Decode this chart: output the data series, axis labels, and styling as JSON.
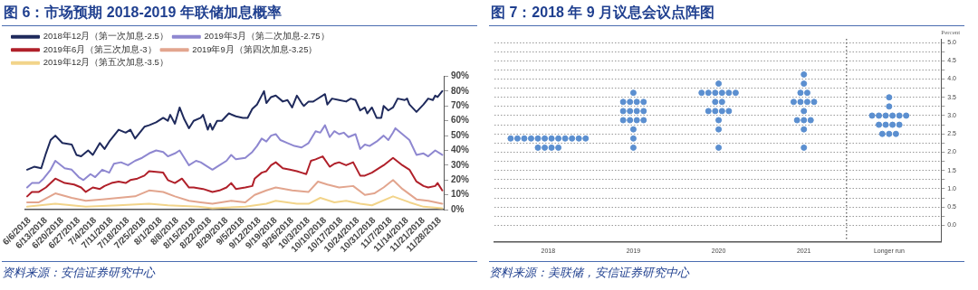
{
  "chart_data": [
    {
      "type": "line",
      "title": "图 6：市场预期 2018-2019 年联储加息概率",
      "annotations": [
        "资料来源：安信证券研究中心"
      ],
      "legend": "top",
      "marker": "none",
      "line_style": "solid",
      "grid": false,
      "xlim": [
        "2018-06-04",
        "2018-11-30"
      ],
      "xticks": [
        {
          "value": "2018-06-06",
          "label": "6/6/2018"
        },
        {
          "value": "2018-06-13",
          "label": "6/13/2018"
        },
        {
          "value": "2018-06-20",
          "label": "6/20/2018"
        },
        {
          "value": "2018-06-27",
          "label": "6/27/2018"
        },
        {
          "value": "2018-07-04",
          "label": "7/4/2018"
        },
        {
          "value": "2018-07-11",
          "label": "7/11/2018"
        },
        {
          "value": "2018-07-18",
          "label": "7/18/2018"
        },
        {
          "value": "2018-07-25",
          "label": "7/25/2018"
        },
        {
          "value": "2018-08-01",
          "label": "8/1/2018"
        },
        {
          "value": "2018-08-08",
          "label": "8/8/2018"
        },
        {
          "value": "2018-08-15",
          "label": "8/15/2018"
        },
        {
          "value": "2018-08-22",
          "label": "8/22/2018"
        },
        {
          "value": "2018-08-29",
          "label": "8/29/2018"
        },
        {
          "value": "2018-09-05",
          "label": "9/5/2018"
        },
        {
          "value": "2018-09-12",
          "label": "9/12/2018"
        },
        {
          "value": "2018-09-19",
          "label": "9/19/2018"
        },
        {
          "value": "2018-09-26",
          "label": "9/26/2018"
        },
        {
          "value": "2018-10-03",
          "label": "10/3/2018"
        },
        {
          "value": "2018-10-10",
          "label": "10/10/2018"
        },
        {
          "value": "2018-10-17",
          "label": "10/17/2018"
        },
        {
          "value": "2018-10-24",
          "label": "10/24/2018"
        },
        {
          "value": "2018-10-31",
          "label": "10/31/2018"
        },
        {
          "value": "2018-11-07",
          "label": "11/7/2018"
        },
        {
          "value": "2018-11-14",
          "label": "11/14/2018"
        },
        {
          "value": "2018-11-21",
          "label": "11/21/2018"
        },
        {
          "value": "2018-11-28",
          "label": "11/28/2018"
        }
      ],
      "ylim": [
        0,
        90
      ],
      "yticks": [
        {
          "value": 0,
          "label": "0%"
        },
        {
          "value": 10,
          "label": "10%"
        },
        {
          "value": 20,
          "label": "20%"
        },
        {
          "value": 30,
          "label": "30%"
        },
        {
          "value": 40,
          "label": "40%"
        },
        {
          "value": 50,
          "label": "50%"
        },
        {
          "value": 60,
          "label": "60%"
        },
        {
          "value": 70,
          "label": "70%"
        },
        {
          "value": 80,
          "label": "80%"
        },
        {
          "value": 90,
          "label": "90%"
        }
      ],
      "series": [
        {
          "name": "2018年12月（第一次加息-2.5）",
          "color": "#1f2a5c",
          "x": [
            "2018-06-05",
            "2018-06-08",
            "2018-06-11",
            "2018-06-13",
            "2018-06-15",
            "2018-06-17",
            "2018-06-20",
            "2018-06-24",
            "2018-06-26",
            "2018-06-28",
            "2018-07-01",
            "2018-07-03",
            "2018-07-06",
            "2018-07-08",
            "2018-07-10",
            "2018-07-14",
            "2018-07-17",
            "2018-07-19",
            "2018-07-21",
            "2018-07-25",
            "2018-07-27",
            "2018-07-30",
            "2018-08-02",
            "2018-08-04",
            "2018-08-05",
            "2018-08-07",
            "2018-08-09",
            "2018-08-11",
            "2018-08-13",
            "2018-08-15",
            "2018-08-18",
            "2018-08-19",
            "2018-08-21",
            "2018-08-22",
            "2018-08-23",
            "2018-08-25",
            "2018-08-27",
            "2018-08-30",
            "2018-09-02",
            "2018-09-05",
            "2018-09-07",
            "2018-09-09",
            "2018-09-11",
            "2018-09-14",
            "2018-09-15",
            "2018-09-17",
            "2018-09-19",
            "2018-09-22",
            "2018-09-24",
            "2018-09-26",
            "2018-09-28",
            "2018-09-30",
            "2018-10-01",
            "2018-10-03",
            "2018-10-05",
            "2018-10-06",
            "2018-10-10",
            "2018-10-11",
            "2018-10-13",
            "2018-10-16",
            "2018-10-19",
            "2018-10-21",
            "2018-10-23",
            "2018-10-25",
            "2018-10-27",
            "2018-10-28",
            "2018-10-30",
            "2018-11-01",
            "2018-11-03",
            "2018-11-04",
            "2018-11-06",
            "2018-11-08",
            "2018-11-10",
            "2018-11-13",
            "2018-11-14",
            "2018-11-15",
            "2018-11-18",
            "2018-11-21",
            "2018-11-23",
            "2018-11-25",
            "2018-11-26",
            "2018-11-27",
            "2018-11-29"
          ],
          "values": [
            27,
            29,
            28,
            38,
            47,
            50,
            45,
            44,
            37,
            36,
            40,
            37,
            45,
            41,
            46,
            54,
            52,
            54,
            48,
            56,
            57,
            59,
            62,
            60,
            64,
            58,
            69,
            61,
            55,
            60,
            62,
            64,
            54,
            58,
            54,
            60,
            60,
            65,
            63,
            62,
            62,
            68,
            71,
            80,
            72,
            76,
            77,
            73,
            74,
            69,
            77,
            72,
            70,
            73,
            73,
            74,
            78,
            71,
            75,
            74,
            73,
            75,
            74,
            67,
            69,
            65,
            69,
            62,
            62,
            70,
            67,
            69,
            75,
            74,
            75,
            71,
            66,
            71,
            75,
            74,
            77,
            76,
            80
          ]
        },
        {
          "name": "2019年3月（第二次加息-2.75）",
          "color": "#8e87d0",
          "x": [
            "2018-06-05",
            "2018-06-07",
            "2018-06-10",
            "2018-06-12",
            "2018-06-15",
            "2018-06-17",
            "2018-06-21",
            "2018-06-24",
            "2018-06-27",
            "2018-06-29",
            "2018-07-02",
            "2018-07-04",
            "2018-07-07",
            "2018-07-10",
            "2018-07-12",
            "2018-07-15",
            "2018-07-18",
            "2018-07-21",
            "2018-07-24",
            "2018-07-27",
            "2018-07-30",
            "2018-08-02",
            "2018-08-04",
            "2018-08-07",
            "2018-08-09",
            "2018-08-11",
            "2018-08-13",
            "2018-08-16",
            "2018-08-18",
            "2018-08-21",
            "2018-08-23",
            "2018-08-26",
            "2018-08-29",
            "2018-08-31",
            "2018-09-02",
            "2018-09-06",
            "2018-09-09",
            "2018-09-11",
            "2018-09-13",
            "2018-09-15",
            "2018-09-17",
            "2018-09-19",
            "2018-09-21",
            "2018-09-24",
            "2018-09-27",
            "2018-09-30",
            "2018-10-03",
            "2018-10-06",
            "2018-10-08",
            "2018-10-10",
            "2018-10-12",
            "2018-10-14",
            "2018-10-16",
            "2018-10-18",
            "2018-10-20",
            "2018-10-23",
            "2018-10-25",
            "2018-10-27",
            "2018-10-29",
            "2018-11-01",
            "2018-11-04",
            "2018-11-06",
            "2018-11-08",
            "2018-11-09",
            "2018-11-12",
            "2018-11-15",
            "2018-11-18",
            "2018-11-21",
            "2018-11-23",
            "2018-11-26",
            "2018-11-29"
          ],
          "values": [
            15,
            18,
            18,
            21,
            27,
            33,
            28,
            27,
            22,
            20,
            24,
            22,
            27,
            25,
            31,
            32,
            30,
            33,
            35,
            38,
            40,
            39,
            36,
            38,
            40,
            35,
            30,
            33,
            32,
            29,
            27,
            30,
            33,
            37,
            34,
            35,
            39,
            43,
            48,
            46,
            50,
            51,
            47,
            45,
            43,
            42,
            45,
            53,
            52,
            57,
            49,
            53,
            51,
            52,
            49,
            51,
            41,
            44,
            43,
            46,
            50,
            47,
            52,
            55,
            51,
            47,
            37,
            38,
            36,
            40,
            37
          ]
        },
        {
          "name": "2019年6月（第三次加息-3）",
          "color": "#b0202a",
          "x": [
            "2018-06-05",
            "2018-06-07",
            "2018-06-10",
            "2018-06-13",
            "2018-06-17",
            "2018-06-21",
            "2018-06-25",
            "2018-06-28",
            "2018-06-30",
            "2018-07-03",
            "2018-07-06",
            "2018-07-08",
            "2018-07-11",
            "2018-07-14",
            "2018-07-17",
            "2018-07-19",
            "2018-07-22",
            "2018-07-25",
            "2018-07-27",
            "2018-08-02",
            "2018-08-04",
            "2018-08-07",
            "2018-08-10",
            "2018-08-13",
            "2018-08-15",
            "2018-08-19",
            "2018-08-23",
            "2018-08-26",
            "2018-08-29",
            "2018-08-31",
            "2018-09-02",
            "2018-09-06",
            "2018-09-09",
            "2018-09-10",
            "2018-09-13",
            "2018-09-15",
            "2018-09-17",
            "2018-09-19",
            "2018-09-22",
            "2018-09-25",
            "2018-09-28",
            "2018-09-30",
            "2018-10-02",
            "2018-10-04",
            "2018-10-06",
            "2018-10-09",
            "2018-10-12",
            "2018-10-14",
            "2018-10-16",
            "2018-10-19",
            "2018-10-22",
            "2018-10-25",
            "2018-10-27",
            "2018-10-30",
            "2018-11-02",
            "2018-11-04",
            "2018-11-08",
            "2018-11-12",
            "2018-11-15",
            "2018-11-18",
            "2018-11-21",
            "2018-11-23",
            "2018-11-26",
            "2018-11-27",
            "2018-11-29"
          ],
          "values": [
            9,
            12,
            12,
            15,
            21,
            18,
            17,
            15,
            12,
            15,
            14,
            16,
            18,
            19,
            18,
            20,
            21,
            23,
            26,
            25,
            20,
            18,
            21,
            15,
            15,
            14,
            12,
            13,
            15,
            18,
            14,
            15,
            16,
            21,
            25,
            26,
            30,
            32,
            28,
            27,
            26,
            25,
            24,
            33,
            34,
            36,
            29,
            31,
            32,
            30,
            32,
            23,
            23,
            25,
            28,
            30,
            35,
            30,
            27,
            19,
            16,
            15,
            16,
            18,
            13
          ]
        },
        {
          "name": "2019年9月（第四次加息-3.25）",
          "color": "#e2a58e",
          "x": [
            "2018-06-05",
            "2018-06-10",
            "2018-06-17",
            "2018-06-24",
            "2018-06-30",
            "2018-07-07",
            "2018-07-14",
            "2018-07-21",
            "2018-07-27",
            "2018-08-02",
            "2018-08-07",
            "2018-08-13",
            "2018-08-18",
            "2018-08-23",
            "2018-08-31",
            "2018-09-06",
            "2018-09-10",
            "2018-09-15",
            "2018-09-19",
            "2018-09-26",
            "2018-10-03",
            "2018-10-07",
            "2018-10-11",
            "2018-10-16",
            "2018-10-22",
            "2018-10-27",
            "2018-10-31",
            "2018-11-04",
            "2018-11-08",
            "2018-11-12",
            "2018-11-18",
            "2018-11-23",
            "2018-11-29"
          ],
          "values": [
            5,
            5,
            11,
            8,
            6,
            7,
            8,
            9,
            13,
            12,
            9,
            6,
            5,
            4,
            6,
            5,
            10,
            13,
            15,
            13,
            12,
            19,
            17,
            15,
            16,
            10,
            11,
            15,
            20,
            14,
            7,
            6,
            4
          ]
        },
        {
          "name": "2019年12月（第五次加息-3.5）",
          "color": "#f2d48a",
          "x": [
            "2018-06-05",
            "2018-06-17",
            "2018-06-30",
            "2018-07-14",
            "2018-07-27",
            "2018-08-04",
            "2018-08-17",
            "2018-08-23",
            "2018-09-06",
            "2018-09-15",
            "2018-09-19",
            "2018-09-28",
            "2018-10-03",
            "2018-10-08",
            "2018-10-14",
            "2018-10-19",
            "2018-10-25",
            "2018-10-30",
            "2018-11-08",
            "2018-11-15",
            "2018-11-21",
            "2018-11-29"
          ],
          "values": [
            2,
            4,
            2,
            3,
            4,
            3,
            2,
            1,
            2,
            4,
            6,
            4,
            4,
            8,
            5,
            6,
            4,
            3,
            9,
            5,
            2,
            1
          ]
        }
      ]
    },
    {
      "type": "scatter",
      "title": "图 7：2018 年 9 月议息会议点阵图",
      "ylabel": "Percent",
      "annotations": [
        "资料来源：美联储，安信证券研究中心"
      ],
      "legend": false,
      "marker": "circle",
      "grid": "y",
      "xlim": [
        2017.37,
        2022.61
      ],
      "xticks": [
        2018,
        2019,
        2020,
        2021,
        {
          "value": 2022,
          "label": "Longer run"
        }
      ],
      "ref_lines": [
        {
          "axis": "x",
          "value": 2021.5,
          "color": "#555555",
          "line_style": "dotted"
        }
      ],
      "ylim": [
        -0.45,
        5.1
      ],
      "yticks": [
        {
          "value": 0,
          "label": "0.0"
        },
        {
          "value": 0.25,
          "label": null
        },
        {
          "value": 0.5,
          "label": "0.5"
        },
        {
          "value": 0.75,
          "label": null
        },
        {
          "value": 1,
          "label": "1.0"
        },
        {
          "value": 1.25,
          "label": null
        },
        {
          "value": 1.5,
          "label": "1.5"
        },
        {
          "value": 1.75,
          "label": null
        },
        {
          "value": 2,
          "label": "2.0"
        },
        {
          "value": 2.25,
          "label": null
        },
        {
          "value": 2.5,
          "label": "2.5"
        },
        {
          "value": 2.75,
          "label": null
        },
        {
          "value": 3,
          "label": "3.0"
        },
        {
          "value": 3.25,
          "label": null
        },
        {
          "value": 3.5,
          "label": "3.5"
        },
        {
          "value": 3.75,
          "label": null
        },
        {
          "value": 4,
          "label": "4.0"
        },
        {
          "value": 4.25,
          "label": null
        },
        {
          "value": 4.5,
          "label": "4.5"
        },
        {
          "value": 4.75,
          "label": null
        },
        {
          "value": 5,
          "label": "5.0"
        }
      ],
      "series": [
        {
          "color": "#5b8fd0",
          "x": [
            2017.56,
            2017.64,
            2017.72,
            2017.8,
            2017.88,
            2017.96,
            2018.04,
            2018.12,
            2018.2,
            2018.28,
            2018.36,
            2018.44,
            2017.88,
            2017.96,
            2018.04,
            2018.12,
            2019,
            2018.88,
            2018.96,
            2019.04,
            2019.12,
            2018.88,
            2018.96,
            2019.04,
            2019.12,
            2018.88,
            2018.96,
            2019.04,
            2019.12,
            2019,
            2019,
            2019,
            2020,
            2019.8,
            2019.88,
            2019.96,
            2020.04,
            2020.12,
            2020.2,
            2019.96,
            2020.04,
            2019.88,
            2019.96,
            2020.04,
            2020.12,
            2020,
            2020,
            2020,
            2021,
            2021,
            2020.96,
            2021.04,
            2020.88,
            2020.96,
            2021.04,
            2021.12,
            2021,
            2020.92,
            2021,
            2021.08,
            2021,
            2021,
            2022,
            2022,
            2021.8,
            2021.88,
            2021.96,
            2022.04,
            2022.12,
            2022.2,
            2021.88,
            2021.96,
            2022.04,
            2022.12,
            2021.92,
            2022,
            2022.08
          ],
          "values": [
            2.375,
            2.375,
            2.375,
            2.375,
            2.375,
            2.375,
            2.375,
            2.375,
            2.375,
            2.375,
            2.375,
            2.375,
            2.125,
            2.125,
            2.125,
            2.125,
            3.625,
            3.375,
            3.375,
            3.375,
            3.375,
            3.125,
            3.125,
            3.125,
            3.125,
            2.875,
            2.875,
            2.875,
            2.875,
            2.625,
            2.375,
            2.125,
            3.875,
            3.625,
            3.625,
            3.625,
            3.625,
            3.625,
            3.625,
            3.375,
            3.375,
            3.125,
            3.125,
            3.125,
            3.125,
            2.875,
            2.625,
            2.125,
            4.125,
            3.875,
            3.625,
            3.625,
            3.375,
            3.375,
            3.375,
            3.375,
            3.125,
            2.875,
            2.875,
            2.875,
            2.625,
            2.125,
            3.5,
            3.25,
            3,
            3,
            3,
            3,
            3,
            3,
            2.75,
            2.75,
            2.75,
            2.75,
            2.5,
            2.5,
            2.5
          ]
        }
      ]
    }
  ]
}
